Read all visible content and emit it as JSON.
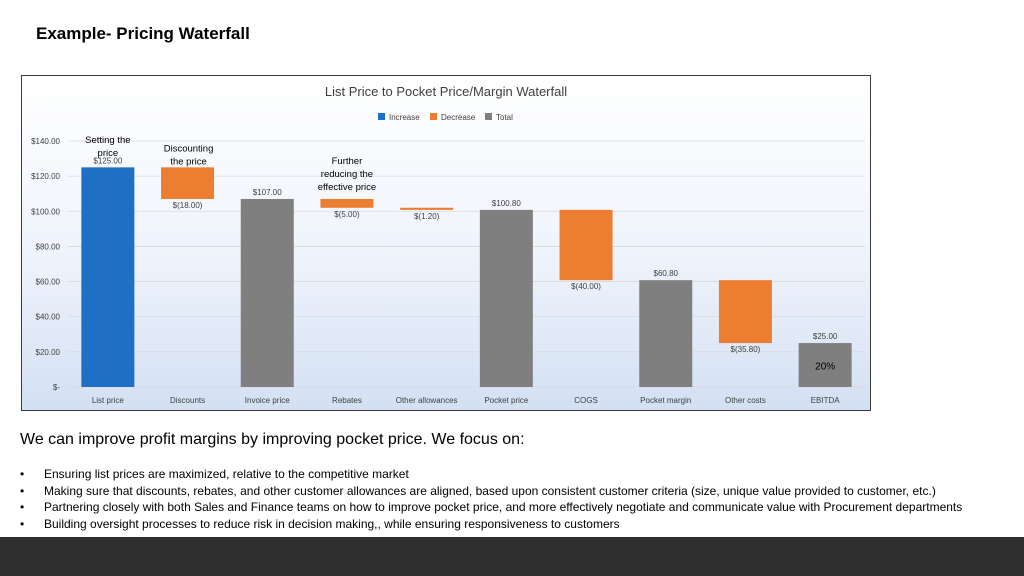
{
  "page": {
    "title": "Example- Pricing Waterfall",
    "bottom_heading": "We can improve profit margins by improving pocket price.  We focus on:",
    "bullets": [
      "Ensuring  list prices are maximized, relative to the competitive market",
      "Making sure that discounts, rebates, and other customer allowances are aligned, based upon consistent customer criteria (size, unique value provided to customer, etc.)",
      "Partnering closely with both Sales and Finance teams on how to improve pocket price, and more effectively negotiate and communicate value with Procurement departments",
      "Building  oversight processes to reduce risk in decision making,, while ensuring responsiveness to customers"
    ]
  },
  "chart_data": {
    "type": "bar",
    "subtype": "waterfall",
    "title": "List Price to Pocket Price/Margin Waterfall",
    "legend": {
      "placement": "top",
      "entries": [
        "Increase",
        "Decrease",
        "Total"
      ]
    },
    "colors": {
      "increase": "#1f6fc5",
      "decrease": "#ed7d31",
      "total": "#7f7f7f",
      "grid": "#d9d9d9",
      "text": "#404040"
    },
    "ylim": [
      0,
      140
    ],
    "yticks": [
      0,
      20,
      40,
      60,
      80,
      100,
      120,
      140
    ],
    "ytick_labels": [
      "$-",
      "$20.00",
      "$40.00",
      "$60.00",
      "$80.00",
      "$100.00",
      "$120.00",
      "$140.00"
    ],
    "grid": true,
    "categories": [
      "List price",
      "Discounts",
      "Invoice price",
      "Rebates",
      "Other allowances",
      "Pocket price",
      "COGS",
      "Pocket margin",
      "Other costs",
      "EBITDA"
    ],
    "bars": [
      {
        "kind": "increase",
        "start": 0,
        "end": 125,
        "label": "$125.00"
      },
      {
        "kind": "decrease",
        "start": 125,
        "end": 107,
        "label": "$(18.00)"
      },
      {
        "kind": "total",
        "start": 0,
        "end": 107,
        "label": "$107.00"
      },
      {
        "kind": "decrease",
        "start": 107,
        "end": 102,
        "label": "$(5.00)"
      },
      {
        "kind": "decrease",
        "start": 102,
        "end": 100.8,
        "label": "$(1.20)"
      },
      {
        "kind": "total",
        "start": 0,
        "end": 100.8,
        "label": "$100.80"
      },
      {
        "kind": "decrease",
        "start": 100.8,
        "end": 60.8,
        "label": "$(40.00)"
      },
      {
        "kind": "total",
        "start": 0,
        "end": 60.8,
        "label": "$60.80"
      },
      {
        "kind": "decrease",
        "start": 60.8,
        "end": 25,
        "label": "$(35.80)"
      },
      {
        "kind": "total",
        "start": 0,
        "end": 25,
        "label": "$25.00"
      }
    ],
    "annotations": [
      {
        "category": "List price",
        "lines": [
          "Setting the",
          "price"
        ],
        "value": 139
      },
      {
        "category": "Discounts",
        "lines": [
          "Discounting",
          "the price"
        ],
        "value": 134
      },
      {
        "category": "Rebates",
        "lines": [
          "Further",
          "reducing the",
          "effective price"
        ],
        "value": 127
      },
      {
        "category": "EBITDA",
        "lines": [
          "20%"
        ],
        "value": 10
      }
    ]
  }
}
